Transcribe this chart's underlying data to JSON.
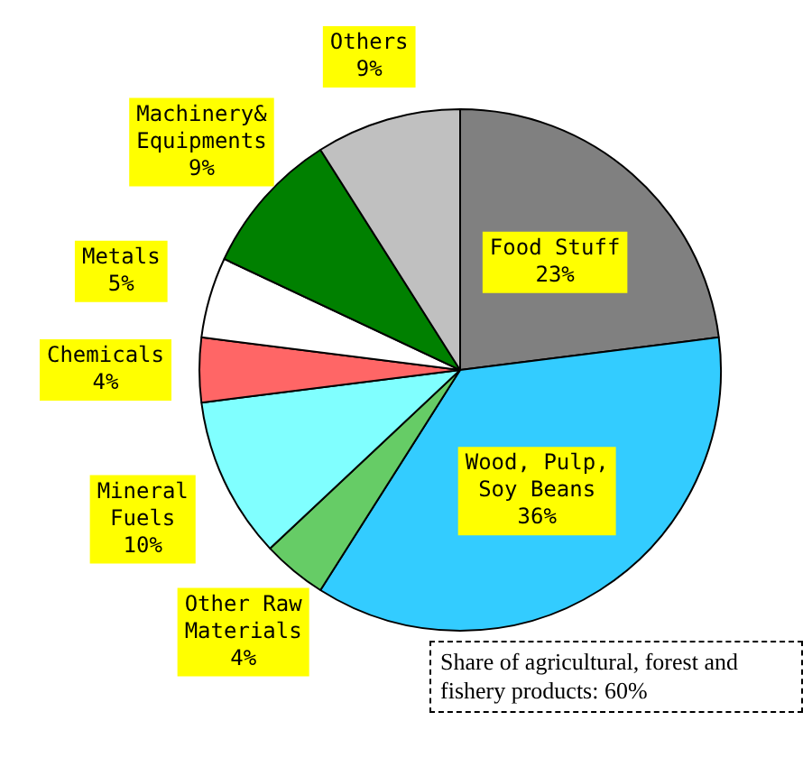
{
  "chart_data": {
    "type": "pie",
    "categories": [
      "Food Stuff",
      "Wood, Pulp, Soy Beans",
      "Other Raw Materials",
      "Mineral Fuels",
      "Chemicals",
      "Metals",
      "Machinery& Equipments",
      "Others"
    ],
    "values": [
      23,
      36,
      4,
      10,
      4,
      5,
      9,
      9
    ],
    "value_labels": [
      "23%",
      "36%",
      "4%",
      "10%",
      "4%",
      "5%",
      "9%",
      "9%"
    ],
    "colors": [
      "#808080",
      "#33ccff",
      "#66cc66",
      "#80ffff",
      "#ff6666",
      "#ffffff",
      "#008000",
      "#c0c0c0"
    ],
    "annotations": [
      "Share of agricultural, forest and fishery products: 60%"
    ],
    "legend": false
  }
}
